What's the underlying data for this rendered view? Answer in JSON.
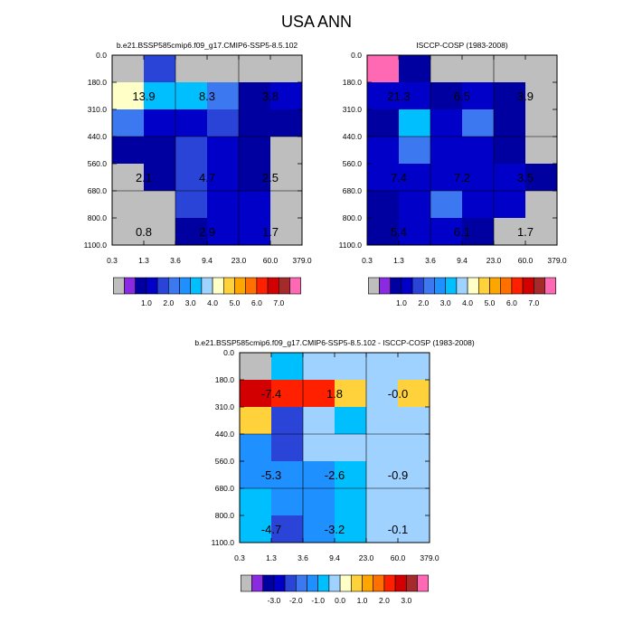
{
  "title": "USA ANN",
  "chart_data": [
    {
      "type": "heatmap",
      "title": "b.e21.BSSP585cmip6.f09_g17.CMIP6-SSP5-8.5.102",
      "x_ticks": [
        "0.3",
        "1.3",
        "3.6",
        "9.4",
        "23.0",
        "60.0",
        "379.0"
      ],
      "y_ticks": [
        "0.0",
        "180.0",
        "310.0",
        "440.0",
        "560.0",
        "680.0",
        "800.0",
        "1100.0"
      ],
      "grid": [
        [
          null,
          2.0,
          null,
          null,
          null,
          null
        ],
        [
          4.6,
          3.8,
          3.5,
          2.8,
          1.1,
          1.6
        ],
        [
          2.8,
          1.6,
          1.8,
          2.0,
          1.3,
          1.3
        ],
        [
          1.3,
          1.3,
          2.0,
          1.8,
          1.2,
          null
        ],
        [
          null,
          1.1,
          2.0,
          1.8,
          1.2,
          null
        ],
        [
          null,
          null,
          2.0,
          1.8,
          1.8,
          null
        ],
        [
          null,
          null,
          1.0,
          1.8,
          1.8,
          null
        ]
      ],
      "labels": [
        {
          "text": "13.9",
          "row": 1,
          "col": 0
        },
        {
          "text": "8.3",
          "row": 1,
          "col": 2
        },
        {
          "text": "3.8",
          "row": 1,
          "col": 4
        },
        {
          "text": "2.1",
          "row": 4,
          "col": 0
        },
        {
          "text": "4.7",
          "row": 4,
          "col": 2
        },
        {
          "text": "2.5",
          "row": 4,
          "col": 4
        },
        {
          "text": "0.8",
          "row": 6,
          "col": 0
        },
        {
          "text": "2.9",
          "row": 6,
          "col": 2
        },
        {
          "text": "1.7",
          "row": 6,
          "col": 4
        }
      ],
      "colorbar_labels": [
        "1.0",
        "2.0",
        "3.0",
        "4.0",
        "5.0",
        "6.0",
        "7.0"
      ]
    },
    {
      "type": "heatmap",
      "title": "ISCCP-COSP (1983-2008)",
      "x_ticks": [
        "0.3",
        "1.3",
        "3.6",
        "9.4",
        "23.0",
        "60.0",
        "379.0"
      ],
      "y_ticks": [
        "0.0",
        "180.0",
        "310.0",
        "440.0",
        "560.0",
        "680.0",
        "800.0",
        "1100.0"
      ],
      "grid": [
        [
          8.5,
          1.2,
          null,
          null,
          null,
          null
        ],
        [
          1.6,
          1.6,
          1.0,
          1.8,
          1.2,
          null
        ],
        [
          1.2,
          3.8,
          1.6,
          2.8,
          1.2,
          null
        ],
        [
          1.6,
          2.8,
          1.6,
          1.6,
          1.2,
          null
        ],
        [
          1.6,
          1.6,
          1.6,
          1.6,
          1.6,
          1.0
        ],
        [
          1.0,
          1.6,
          2.5,
          1.6,
          1.6,
          null
        ],
        [
          1.2,
          1.6,
          1.6,
          1.0,
          null,
          null
        ]
      ],
      "labels": [
        {
          "text": "21.3",
          "row": 1,
          "col": 0
        },
        {
          "text": "6.5",
          "row": 1,
          "col": 2
        },
        {
          "text": "3.9",
          "row": 1,
          "col": 4
        },
        {
          "text": "7.4",
          "row": 4,
          "col": 0
        },
        {
          "text": "7.2",
          "row": 4,
          "col": 2
        },
        {
          "text": "3.5",
          "row": 4,
          "col": 4
        },
        {
          "text": "5.4",
          "row": 6,
          "col": 0
        },
        {
          "text": "6.1",
          "row": 6,
          "col": 2
        },
        {
          "text": "1.7",
          "row": 6,
          "col": 4
        }
      ],
      "colorbar_labels": [
        "1.0",
        "2.0",
        "3.0",
        "4.0",
        "5.0",
        "6.0",
        "7.0"
      ]
    },
    {
      "type": "heatmap",
      "title": "b.e21.BSSP585cmip6.f09_g17.CMIP6-SSP5-8.5.102 - ISCCP-COSP (1983-2008)",
      "x_ticks": [
        "0.3",
        "1.3",
        "3.6",
        "9.4",
        "23.0",
        "60.0",
        "379.0"
      ],
      "y_ticks": [
        "0.0",
        "180.0",
        "310.0",
        "440.0",
        "560.0",
        "680.0",
        "800.0",
        "1100.0"
      ],
      "grid": [
        [
          null,
          -0.7,
          -0.2,
          -0.2,
          -0.2,
          -0.2
        ],
        [
          3.2,
          2.6,
          2.3,
          1.2,
          -0.2,
          1.2
        ],
        [
          1.2,
          -1.8,
          -0.2,
          -0.7,
          -0.2,
          0.2
        ],
        [
          -1.2,
          -1.8,
          -0.2,
          -0.2,
          -0.2,
          -0.2
        ],
        [
          -1.2,
          -1.2,
          -1.2,
          -0.7,
          -0.2,
          -0.2
        ],
        [
          -0.7,
          -1.2,
          -1.2,
          -0.7,
          -0.2,
          -0.2
        ],
        [
          -0.7,
          -1.8,
          -1.2,
          -0.7,
          0.2,
          -0.2
        ]
      ],
      "labels": [
        {
          "text": "-7.4",
          "row": 1,
          "col": 0
        },
        {
          "text": "1.8",
          "row": 1,
          "col": 2
        },
        {
          "text": "-0.0",
          "row": 1,
          "col": 4
        },
        {
          "text": "-5.3",
          "row": 4,
          "col": 0
        },
        {
          "text": "-2.6",
          "row": 4,
          "col": 2
        },
        {
          "text": "-0.9",
          "row": 4,
          "col": 4
        },
        {
          "text": "-4.7",
          "row": 6,
          "col": 0
        },
        {
          "text": "-3.2",
          "row": 6,
          "col": 2
        },
        {
          "text": "-0.1",
          "row": 6,
          "col": 4
        }
      ],
      "colorbar_labels": [
        "-3.0",
        "-2.0",
        "-1.0",
        "0.0",
        "1.0",
        "2.0",
        "3.0"
      ]
    }
  ],
  "colors": {
    "missing": "#bebebe",
    "cbar_abs": [
      "#bebebe",
      "#8a2be2",
      "#0000a0",
      "#0000c8",
      "#2a44d8",
      "#3c78f0",
      "#1e90ff",
      "#00bfff",
      "#a0d2ff",
      "#ffffc8",
      "#ffd23c",
      "#ffa500",
      "#ff7000",
      "#ff2000",
      "#d20000",
      "#a52a2a",
      "#ff69b4"
    ],
    "cbar_diff": [
      "#bebebe",
      "#8a2be2",
      "#0000a0",
      "#0000c8",
      "#2a44d8",
      "#3c78f0",
      "#1e90ff",
      "#00bfff",
      "#a0d2ff",
      "#ffffc8",
      "#ffd23c",
      "#ffa500",
      "#ff7000",
      "#ff2000",
      "#d20000",
      "#a52a2a",
      "#ff69b4"
    ]
  }
}
